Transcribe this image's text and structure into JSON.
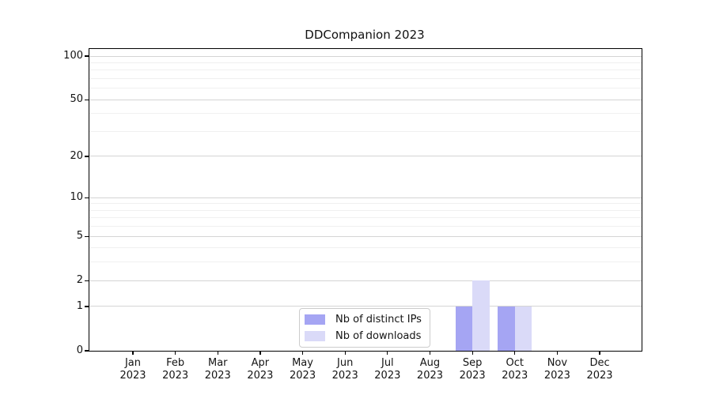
{
  "chart_data": {
    "type": "bar",
    "title": "DDCompanion 2023",
    "categories": [
      "Jan",
      "Feb",
      "Mar",
      "Apr",
      "May",
      "Jun",
      "Jul",
      "Aug",
      "Sep",
      "Oct",
      "Nov",
      "Dec"
    ],
    "category_year_line": "2023",
    "series": [
      {
        "name": "Nb of distinct IPs",
        "color": "#a5a5f3",
        "values": [
          0,
          0,
          0,
          0,
          0,
          0,
          0,
          0,
          1,
          1,
          0,
          0
        ]
      },
      {
        "name": "Nb of downloads",
        "color": "#dadaf8",
        "values": [
          0,
          0,
          0,
          0,
          0,
          0,
          0,
          0,
          2,
          1,
          0,
          0
        ]
      }
    ],
    "yscale": "log1p",
    "ylim": [
      0,
      112
    ],
    "yticks": [
      0,
      1,
      2,
      5,
      10,
      20,
      50,
      100
    ],
    "yticks_minor": [
      3,
      4,
      6,
      7,
      8,
      9,
      30,
      40,
      60,
      70,
      80,
      90
    ],
    "xlabel": "",
    "ylabel": "",
    "grid": "on",
    "legend": {
      "position": "lower-center-inside"
    },
    "colors": {
      "grid_major": "#d4d4d4",
      "grid_minor": "#f0f0f0",
      "spine": "#000000",
      "text": "#141414",
      "background": "#ffffff"
    }
  }
}
